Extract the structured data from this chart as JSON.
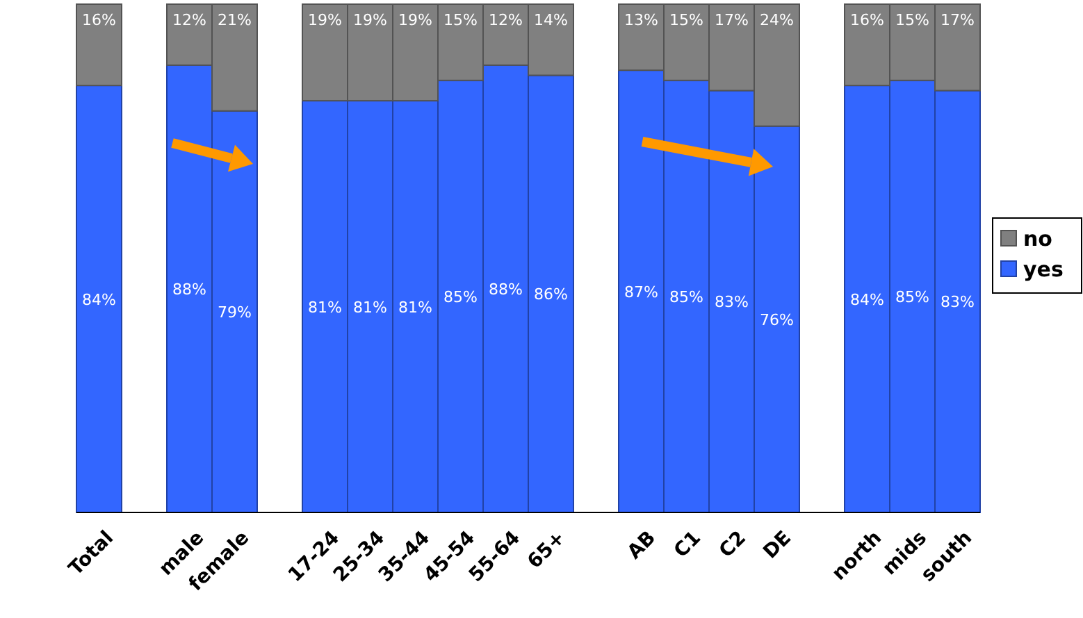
{
  "chart_data": {
    "type": "bar",
    "stacked": true,
    "legend": "right",
    "categories": [
      "Total",
      null,
      "male",
      "female",
      null,
      "17-24",
      "25-34",
      "35-44",
      "45-54",
      "55-64",
      "65+",
      null,
      "AB",
      "C1",
      "C2",
      "DE",
      null,
      "north",
      "mids",
      "south"
    ],
    "series": [
      {
        "name": "yes",
        "color": "#3366ff",
        "values": [
          84,
          null,
          88,
          79,
          null,
          81,
          81,
          81,
          85,
          88,
          86,
          null,
          87,
          85,
          83,
          76,
          null,
          84,
          85,
          83
        ],
        "value_labels": [
          "84%",
          null,
          "88%",
          "79%",
          null,
          "81%",
          "81%",
          "81%",
          "85%",
          "88%",
          "86%",
          null,
          "87%",
          "85%",
          "83%",
          "76%",
          null,
          "84%",
          "85%",
          "83%"
        ]
      },
      {
        "name": "no",
        "color": "#808080",
        "values": [
          16,
          null,
          12,
          21,
          null,
          19,
          19,
          19,
          15,
          12,
          14,
          null,
          13,
          15,
          17,
          24,
          null,
          16,
          15,
          17
        ],
        "value_labels": [
          "16%",
          null,
          "12%",
          "21%",
          null,
          "19%",
          "19%",
          "19%",
          "15%",
          "12%",
          "14%",
          null,
          "13%",
          "15%",
          "17%",
          "24%",
          null,
          "16%",
          "15%",
          "17%"
        ]
      }
    ]
  }
}
